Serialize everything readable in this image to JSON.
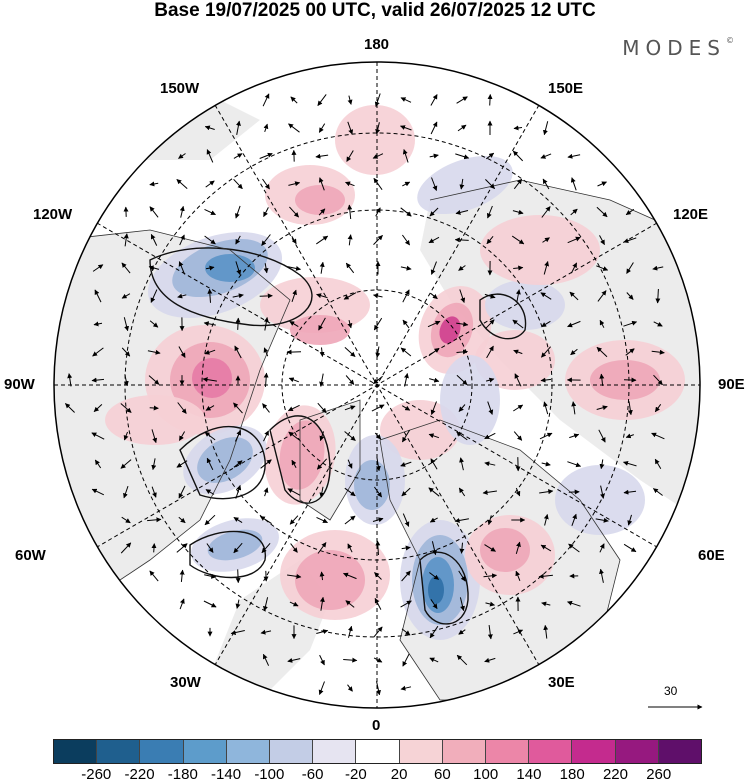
{
  "title": "Base 19/07/2025 00 UTC, valid 26/07/2025 12 UTC",
  "brand": "MODES",
  "brand_mark": "©",
  "longitude_labels": {
    "n180": "180",
    "w150": "150W",
    "e150": "150E",
    "w120": "120W",
    "e120": "120E",
    "w90": "90W",
    "e90": "90E",
    "w60": "60W",
    "e60": "60E",
    "w30": "30W",
    "e30": "30E",
    "s0": "0"
  },
  "vector_scale_label": "30",
  "colorbar": {
    "colors": [
      "#0b3d5e",
      "#1f5f8e",
      "#3a7db3",
      "#5d9ccb",
      "#8fb6dc",
      "#c3cde6",
      "#e6e4f1",
      "#ffffff",
      "#f6d3d6",
      "#f1aebb",
      "#ec86a8",
      "#e05a9c",
      "#c42b8e",
      "#96197f",
      "#5f0f6a"
    ],
    "tick_labels": [
      "-260",
      "-220",
      "-180",
      "-140",
      "-100",
      "-60",
      "-20",
      "20",
      "60",
      "100",
      "140",
      "180",
      "220",
      "260"
    ]
  },
  "map_palette": {
    "land": "#ececec",
    "ocean": "#ffffff",
    "frame": "#000000",
    "neg_light": "#d7d8ec",
    "neg_mid": "#9fb6d9",
    "neg_strong": "#5b93c6",
    "neg_deep": "#2f6fa6",
    "pos_light": "#f6cfd5",
    "pos_mid": "#eea6b8",
    "pos_strong": "#e57aa6",
    "pos_deep": "#cf3f8e"
  }
}
